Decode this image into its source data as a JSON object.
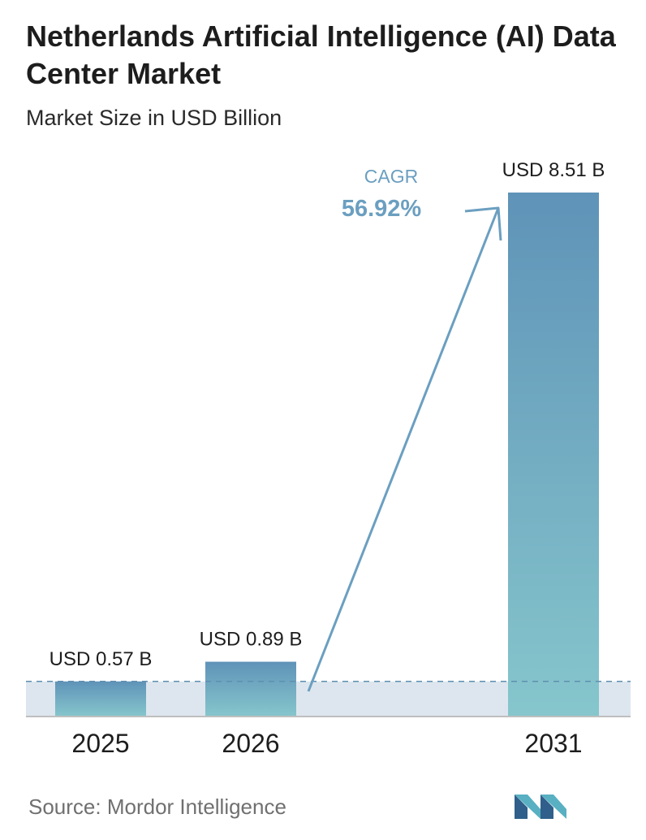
{
  "title": "Netherlands Artificial Intelligence (AI) Data Center Market",
  "subtitle": "Market Size in USD Billion",
  "source": "Source:  Mordor Intelligence",
  "cagr": {
    "label": "CAGR",
    "value": "56.92%"
  },
  "colors": {
    "bar_top": "#5f93b8",
    "bar_bottom": "#86c6cc",
    "accent": "#6b9fc0",
    "band": "#dde6ee"
  },
  "chart_data": {
    "type": "bar",
    "categories": [
      "2025",
      "2026",
      "2031"
    ],
    "values": [
      0.57,
      0.89,
      8.51
    ],
    "value_labels": [
      "USD 0.57 B",
      "USD 0.89 B",
      "USD 8.51 B"
    ],
    "title": "Netherlands Artificial Intelligence (AI) Data Center Market",
    "subtitle": "Market Size in USD Billion",
    "ylim": [
      0,
      8.51
    ],
    "grid": false,
    "legend": "none"
  }
}
